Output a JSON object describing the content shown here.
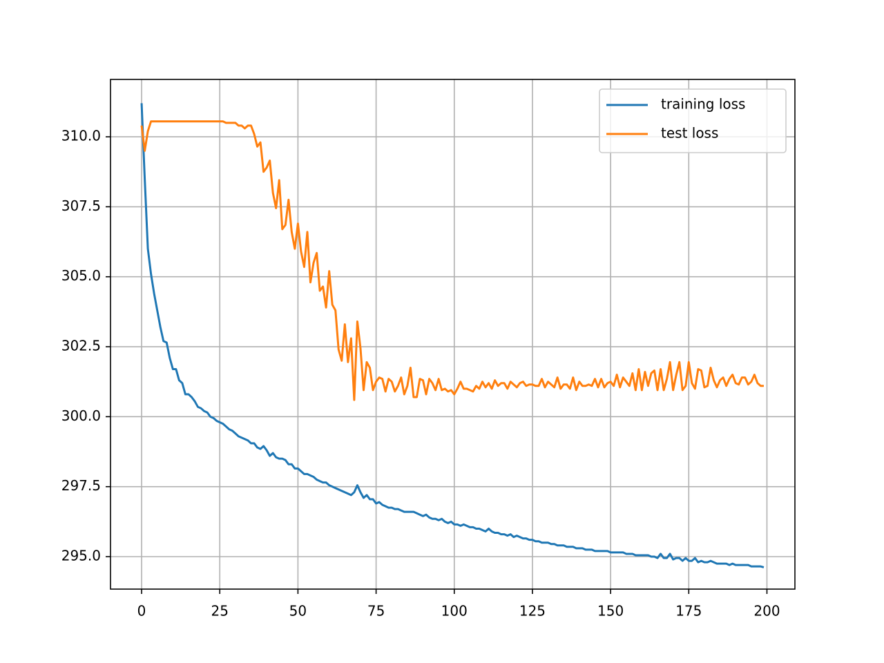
{
  "chart_data": {
    "type": "line",
    "x": [
      0,
      1,
      2,
      3,
      4,
      5,
      6,
      7,
      8,
      9,
      10,
      11,
      12,
      13,
      14,
      15,
      16,
      17,
      18,
      19,
      20,
      21,
      22,
      23,
      24,
      25,
      26,
      27,
      28,
      29,
      30,
      31,
      32,
      33,
      34,
      35,
      36,
      37,
      38,
      39,
      40,
      41,
      42,
      43,
      44,
      45,
      46,
      47,
      48,
      49,
      50,
      51,
      52,
      53,
      54,
      55,
      56,
      57,
      58,
      59,
      60,
      61,
      62,
      63,
      64,
      65,
      66,
      67,
      68,
      69,
      70,
      71,
      72,
      73,
      74,
      75,
      76,
      77,
      78,
      79,
      80,
      81,
      82,
      83,
      84,
      85,
      86,
      87,
      88,
      89,
      90,
      91,
      92,
      93,
      94,
      95,
      96,
      97,
      98,
      99,
      100,
      101,
      102,
      103,
      104,
      105,
      106,
      107,
      108,
      109,
      110,
      111,
      112,
      113,
      114,
      115,
      116,
      117,
      118,
      119,
      120,
      121,
      122,
      123,
      124,
      125,
      126,
      127,
      128,
      129,
      130,
      131,
      132,
      133,
      134,
      135,
      136,
      137,
      138,
      139,
      140,
      141,
      142,
      143,
      144,
      145,
      146,
      147,
      148,
      149,
      150,
      151,
      152,
      153,
      154,
      155,
      156,
      157,
      158,
      159,
      160,
      161,
      162,
      163,
      164,
      165,
      166,
      167,
      168,
      169,
      170,
      171,
      172,
      173,
      174,
      175,
      176,
      177,
      178,
      179,
      180,
      181,
      182,
      183,
      184,
      185,
      186,
      187,
      188,
      189,
      190,
      191,
      192,
      193,
      194,
      195,
      196,
      197,
      198,
      199
    ],
    "series": [
      {
        "name": "training loss",
        "color": "#1f77b4",
        "values": [
          311.2,
          308.5,
          306.0,
          305.1,
          304.4,
          303.8,
          303.2,
          302.7,
          302.65,
          302.1,
          301.7,
          301.7,
          301.3,
          301.2,
          300.8,
          300.8,
          300.7,
          300.55,
          300.35,
          300.3,
          300.2,
          300.15,
          300.0,
          299.95,
          299.85,
          299.8,
          299.75,
          299.65,
          299.55,
          299.5,
          299.4,
          299.3,
          299.25,
          299.2,
          299.15,
          299.05,
          299.05,
          298.9,
          298.85,
          298.95,
          298.8,
          298.6,
          298.7,
          298.55,
          298.5,
          298.5,
          298.45,
          298.3,
          298.3,
          298.15,
          298.15,
          298.05,
          297.95,
          297.95,
          297.9,
          297.85,
          297.75,
          297.7,
          297.65,
          297.65,
          297.55,
          297.5,
          297.45,
          297.4,
          297.35,
          297.3,
          297.25,
          297.2,
          297.3,
          297.55,
          297.3,
          297.1,
          297.2,
          297.05,
          297.05,
          296.9,
          296.95,
          296.85,
          296.8,
          296.75,
          296.75,
          296.7,
          296.7,
          296.65,
          296.6,
          296.6,
          296.6,
          296.6,
          296.55,
          296.5,
          296.45,
          296.5,
          296.4,
          296.35,
          296.35,
          296.3,
          296.35,
          296.25,
          296.2,
          296.25,
          296.15,
          296.15,
          296.1,
          296.15,
          296.1,
          296.05,
          296.05,
          296.0,
          296.0,
          295.95,
          295.9,
          296.0,
          295.9,
          295.85,
          295.85,
          295.8,
          295.8,
          295.75,
          295.8,
          295.7,
          295.75,
          295.7,
          295.65,
          295.65,
          295.6,
          295.6,
          295.55,
          295.55,
          295.5,
          295.5,
          295.5,
          295.45,
          295.45,
          295.4,
          295.4,
          295.4,
          295.35,
          295.35,
          295.35,
          295.3,
          295.3,
          295.3,
          295.25,
          295.25,
          295.25,
          295.2,
          295.2,
          295.2,
          295.2,
          295.2,
          295.15,
          295.15,
          295.15,
          295.15,
          295.15,
          295.1,
          295.1,
          295.1,
          295.05,
          295.05,
          295.05,
          295.05,
          295.05,
          295.0,
          295.0,
          294.95,
          295.1,
          294.95,
          294.95,
          295.1,
          294.9,
          294.95,
          294.95,
          294.85,
          294.95,
          294.85,
          294.85,
          294.95,
          294.8,
          294.85,
          294.8,
          294.8,
          294.85,
          294.8,
          294.75,
          294.75,
          294.75,
          294.75,
          294.7,
          294.75,
          294.7,
          294.7,
          294.7,
          294.7,
          294.7,
          294.65,
          294.65,
          294.65,
          294.65,
          294.62
        ]
      },
      {
        "name": "test loss",
        "color": "#ff7f0e",
        "values": [
          310.4,
          309.5,
          310.2,
          310.55,
          310.55,
          310.55,
          310.55,
          310.55,
          310.55,
          310.55,
          310.55,
          310.55,
          310.55,
          310.55,
          310.55,
          310.55,
          310.55,
          310.55,
          310.55,
          310.55,
          310.55,
          310.55,
          310.55,
          310.55,
          310.55,
          310.55,
          310.55,
          310.5,
          310.5,
          310.5,
          310.5,
          310.4,
          310.4,
          310.3,
          310.4,
          310.4,
          310.1,
          309.65,
          309.8,
          308.75,
          308.9,
          309.15,
          308.0,
          307.45,
          308.45,
          306.7,
          306.85,
          307.75,
          306.6,
          306.0,
          306.9,
          305.9,
          305.35,
          306.6,
          304.8,
          305.5,
          305.85,
          304.5,
          304.65,
          303.9,
          305.2,
          304.0,
          303.8,
          302.4,
          302.0,
          303.3,
          301.95,
          302.8,
          300.6,
          303.4,
          302.45,
          300.95,
          301.95,
          301.75,
          300.95,
          301.25,
          301.4,
          301.35,
          300.9,
          301.35,
          301.25,
          300.9,
          301.1,
          301.4,
          300.8,
          301.1,
          301.75,
          300.7,
          300.7,
          301.35,
          301.3,
          300.8,
          301.35,
          301.2,
          300.95,
          301.35,
          300.95,
          301.0,
          300.9,
          300.95,
          300.8,
          301.0,
          301.25,
          301.0,
          301.0,
          300.95,
          300.9,
          301.1,
          301.0,
          301.25,
          301.05,
          301.2,
          301.0,
          301.3,
          301.1,
          301.2,
          301.2,
          301.0,
          301.25,
          301.15,
          301.05,
          301.2,
          301.25,
          301.1,
          301.15,
          301.15,
          301.1,
          301.1,
          301.35,
          301.05,
          301.25,
          301.15,
          301.05,
          301.4,
          301.0,
          301.15,
          301.15,
          301.0,
          301.4,
          300.95,
          301.25,
          301.1,
          301.1,
          301.15,
          301.1,
          301.35,
          301.05,
          301.35,
          301.05,
          301.2,
          301.25,
          301.1,
          301.5,
          301.05,
          301.4,
          301.25,
          301.1,
          301.55,
          300.95,
          301.7,
          300.95,
          301.6,
          301.1,
          301.55,
          301.65,
          300.95,
          301.7,
          300.95,
          301.35,
          301.95,
          300.95,
          301.5,
          301.95,
          300.95,
          301.1,
          301.95,
          301.2,
          301.0,
          301.7,
          301.65,
          301.05,
          301.1,
          301.75,
          301.3,
          301.05,
          301.3,
          301.4,
          301.1,
          301.35,
          301.5,
          301.2,
          301.15,
          301.4,
          301.4,
          301.15,
          301.25,
          301.5,
          301.2,
          301.1,
          301.1
        ]
      }
    ],
    "xlim": [
      -9.95,
      208.95
    ],
    "xticks": [
      0,
      25,
      50,
      75,
      100,
      125,
      150,
      175,
      200
    ],
    "ylim": [
      293.84,
      312.05
    ],
    "yticks": [
      {
        "value": 295,
        "label": "295.0"
      },
      {
        "value": 297.5,
        "label": "297.5"
      },
      {
        "value": 300,
        "label": "300.0"
      },
      {
        "value": 302.5,
        "label": "302.5"
      },
      {
        "value": 305,
        "label": "305.0"
      },
      {
        "value": 307.5,
        "label": "307.5"
      },
      {
        "value": 310,
        "label": "310.0"
      }
    ],
    "grid": true,
    "legend": "upper right"
  }
}
